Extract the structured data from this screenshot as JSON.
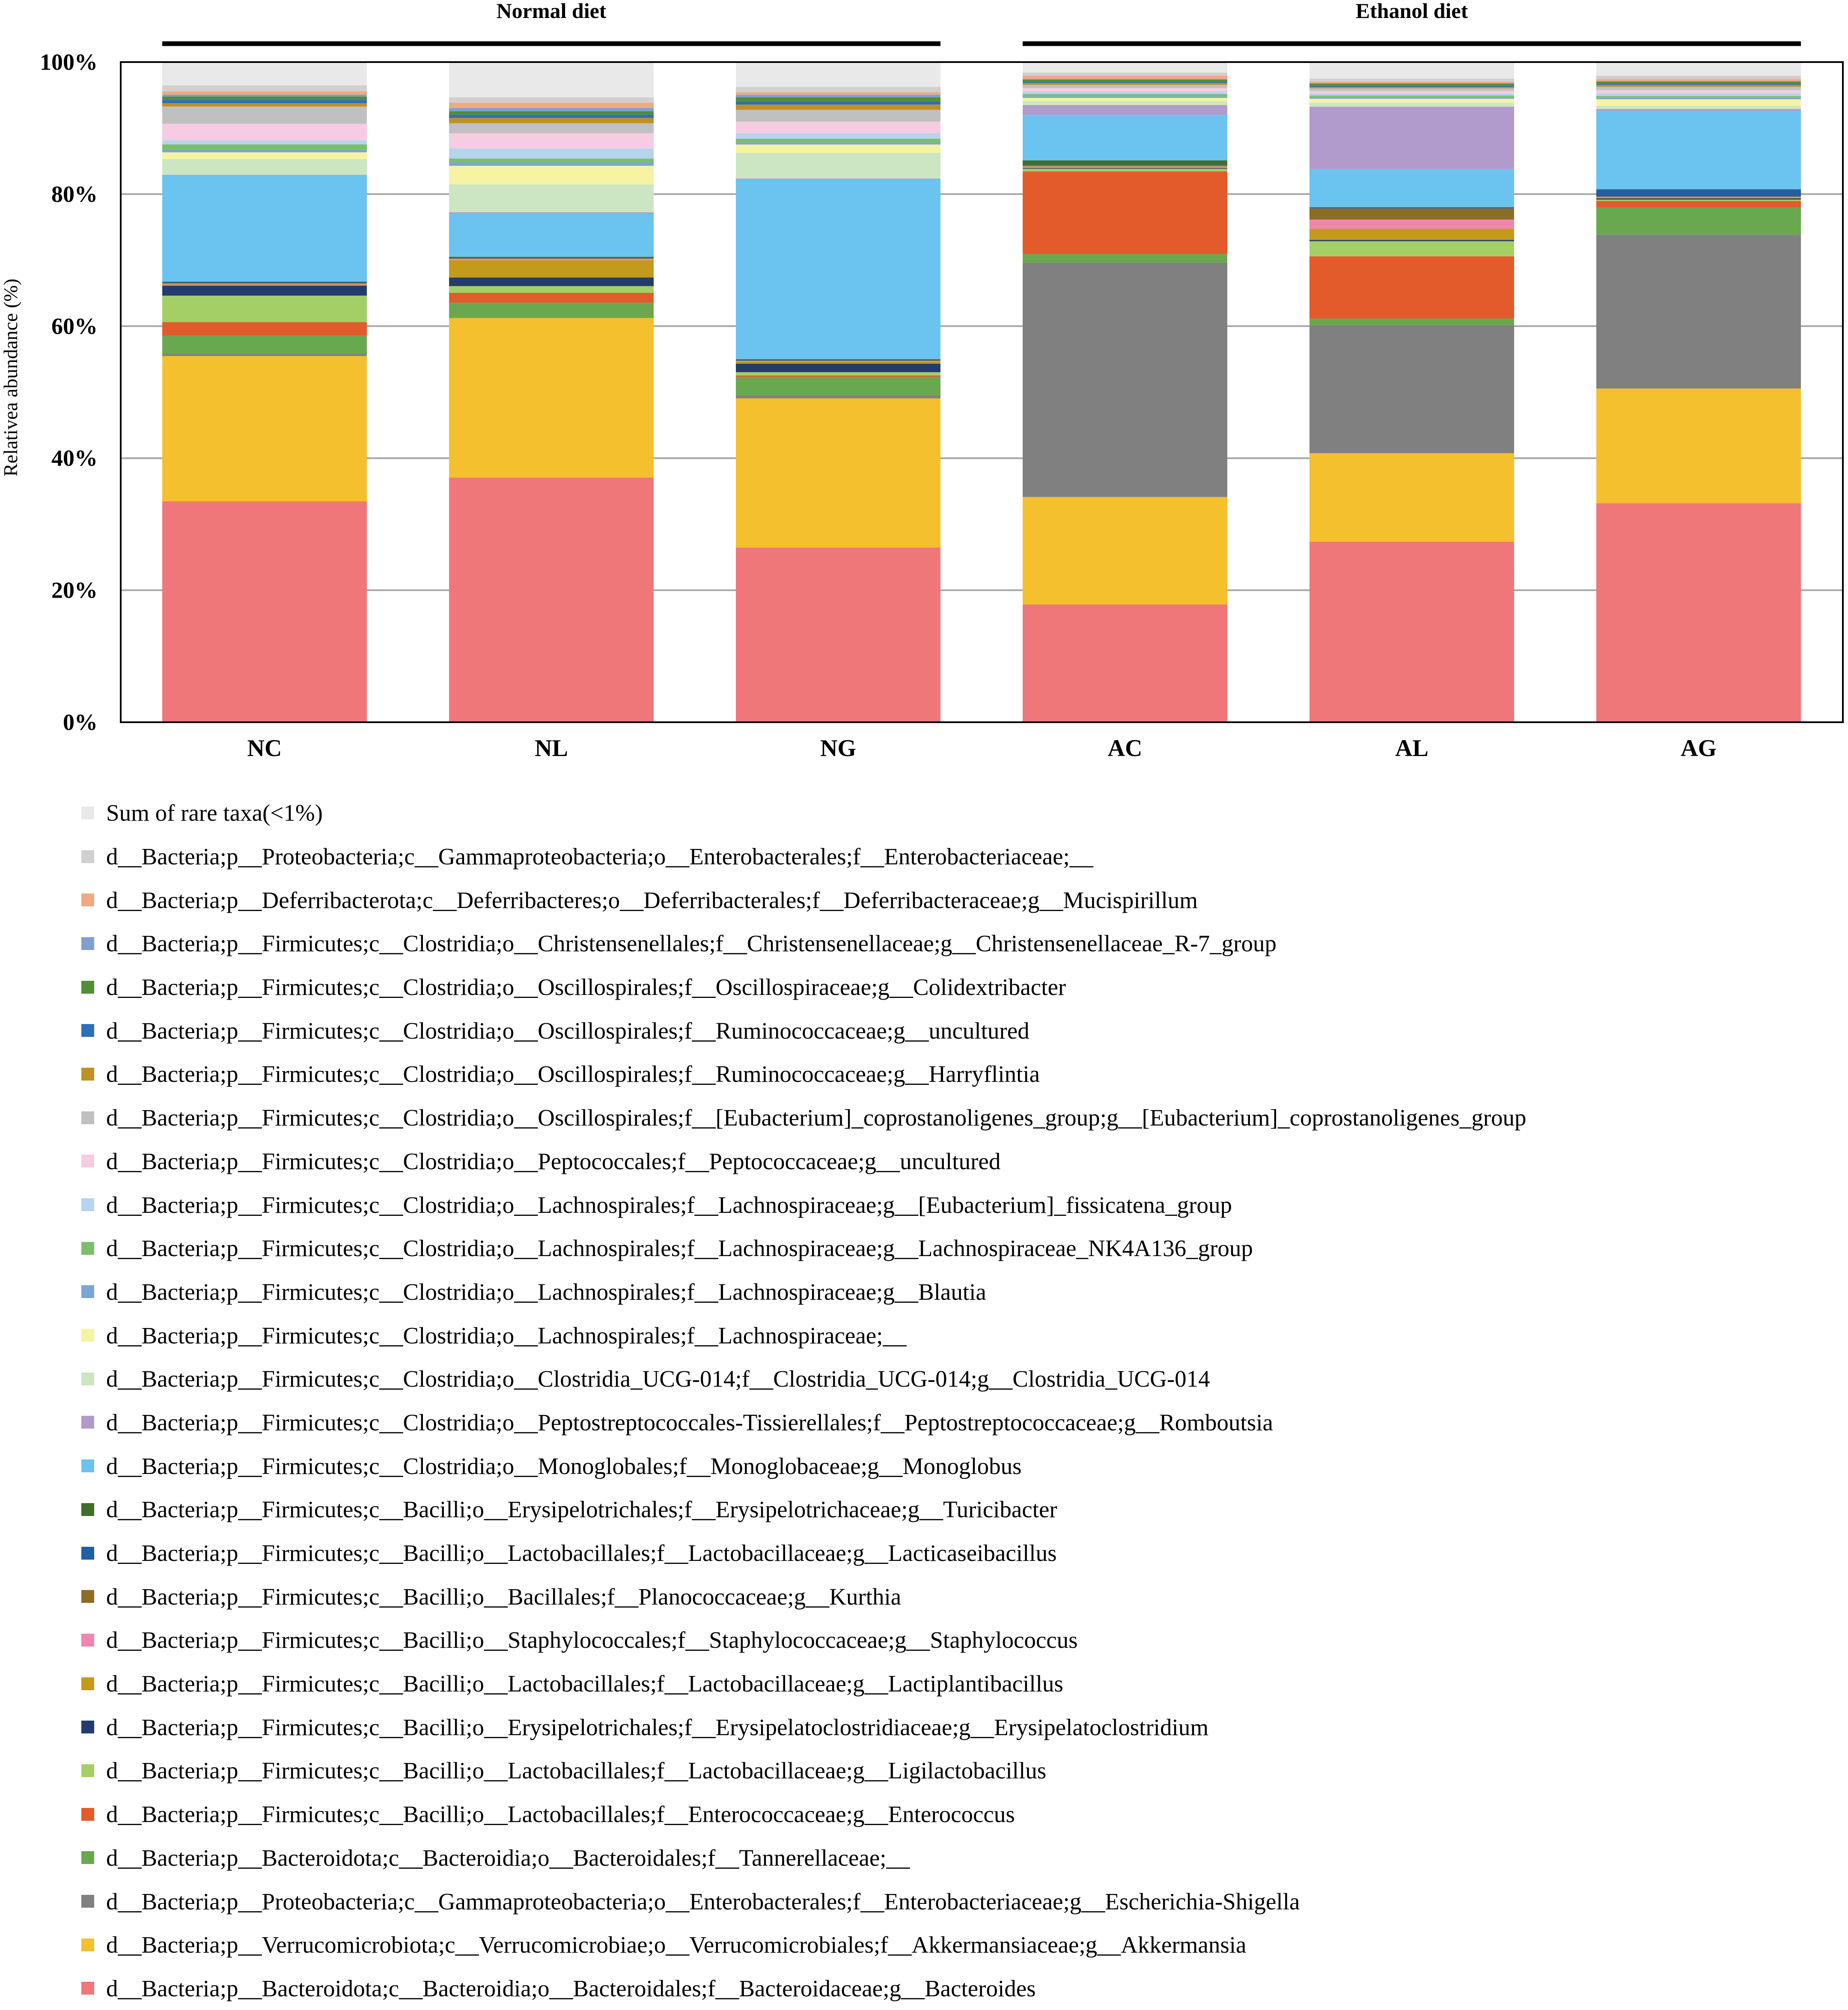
{
  "chart_data": {
    "type": "bar",
    "stacked": true,
    "title": "",
    "xlabel": "",
    "ylabel": "Relativea abundance (%)",
    "ylim": [
      0,
      100
    ],
    "yticks": [
      "0%",
      "20%",
      "40%",
      "60%",
      "80%",
      "100%"
    ],
    "grid": true,
    "legend_position": "bottom",
    "categories": [
      "NC",
      "NL",
      "NG",
      "AC",
      "AL",
      "AG"
    ],
    "groups": [
      {
        "label": "Normal diet",
        "categories": [
          "NC",
          "NL",
          "NG"
        ]
      },
      {
        "label": "Ethanol diet",
        "categories": [
          "AC",
          "AL",
          "AG"
        ]
      }
    ],
    "series": [
      {
        "name": "d__Bacteria;p__Bacteroidota;c__Bacteroidia;o__Bacteroidales;f__Bacteroidaceae;g__Bacteroides",
        "color": "#ef777a",
        "values": [
          33.3,
          36.8,
          26.7,
          18.1,
          27.5,
          33.6
        ]
      },
      {
        "name": "d__Bacteria;p__Verrucomicrobiota;c__Verrucomicrobiae;o__Verrucomicrobiales;f__Akkermansiaceae;g__Akkermansia",
        "color": "#f4c02e",
        "values": [
          21.9,
          24.0,
          22.8,
          16.5,
          13.5,
          17.6
        ]
      },
      {
        "name": "d__Bacteria;p__Proteobacteria;c__Gammaproteobacteria;o__Enterobacterales;f__Enterobacteriaceae;g__Escherichia-Shigella",
        "color": "#808080",
        "values": [
          0.4,
          0.1,
          0.5,
          36.0,
          19.5,
          23.6
        ]
      },
      {
        "name": "d__Bacteria;p__Bacteroidota;c__Bacteroidia;o__Bacteroidales;f__Tannerellaceae;__",
        "color": "#6aa84f",
        "values": [
          2.7,
          2.2,
          2.8,
          1.3,
          1.0,
          4.2
        ]
      },
      {
        "name": "d__Bacteria;p__Firmicutes;c__Bacilli;o__Lactobacillales;f__Enterococcaceae;g__Enterococcus",
        "color": "#e35a2b",
        "values": [
          2.0,
          1.5,
          0.2,
          12.7,
          9.5,
          1.0
        ]
      },
      {
        "name": "d__Bacteria;p__Firmicutes;c__Bacilli;o__Lactobacillales;f__Lactobacillaceae;g__Ligilactobacillus",
        "color": "#a4cf66",
        "values": [
          4.0,
          1.0,
          0.5,
          0.4,
          2.3,
          0.2
        ]
      },
      {
        "name": "d__Bacteria;p__Firmicutes;c__Bacilli;o__Erysipelotrichales;f__Erysipelatoclostridiaceae;g__Erysipelatoclostridium",
        "color": "#223c72",
        "values": [
          1.5,
          1.3,
          1.3,
          0.1,
          0.2,
          0.2
        ]
      },
      {
        "name": "d__Bacteria;p__Firmicutes;c__Bacilli;o__Lactobacillales;f__Lactobacillaceae;g__Lactiplantibacillus",
        "color": "#c49a1b",
        "values": [
          0.2,
          2.6,
          0.3,
          0.2,
          1.7,
          0.1
        ]
      },
      {
        "name": "d__Bacteria;p__Firmicutes;c__Bacilli;o__Staphylococcales;f__Staphylococcaceae;g__Staphylococcus",
        "color": "#ee86ae",
        "values": [
          0.1,
          0.2,
          0.1,
          0.1,
          1.4,
          0.1
        ]
      },
      {
        "name": "d__Bacteria;p__Firmicutes;c__Bacilli;o__Bacillales;f__Planococcaceae;g__Kurthia",
        "color": "#8c6d26",
        "values": [
          0.1,
          0.1,
          0.1,
          0.1,
          1.7,
          0.1
        ]
      },
      {
        "name": "d__Bacteria;p__Firmicutes;c__Bacilli;o__Lactobacillales;f__Lactobacillaceae;g__Lacticaseibacillus",
        "color": "#1f5fa3",
        "values": [
          0.1,
          0.1,
          0.1,
          0.1,
          0.1,
          1.0
        ]
      },
      {
        "name": "d__Bacteria;p__Firmicutes;c__Bacilli;o__Erysipelotrichales;f__Erysipelotrichaceae;g__Turicibacter",
        "color": "#3e6e2a",
        "values": [
          0.1,
          0.1,
          0.1,
          0.7,
          0.1,
          0.1
        ]
      },
      {
        "name": "d__Bacteria;p__Firmicutes;c__Clostridia;o__Monoglobales;f__Monoglobaceae;g__Monoglobus",
        "color": "#6ac4ef",
        "values": [
          16.0,
          6.5,
          27.5,
          7.0,
          5.8,
          12.0
        ]
      },
      {
        "name": "d__Bacteria;p__Firmicutes;c__Clostridia;o__Peptostreptococcales-Tissierellales;f__Peptostreptococcaceae;g__Romboutsia",
        "color": "#b19acc",
        "values": [
          0.1,
          0.2,
          0.1,
          1.5,
          9.5,
          0.3
        ]
      },
      {
        "name": "d__Bacteria;p__Firmicutes;c__Clostridia;o__Clostridia_UCG-014;f__Clostridia_UCG-014;g__Clostridia_UCG-014",
        "color": "#cce6c1",
        "values": [
          2.4,
          4.2,
          3.9,
          0.6,
          0.6,
          0.5
        ]
      },
      {
        "name": "d__Bacteria;p__Firmicutes;c__Clostridia;o__Lachnospirales;f__Lachnospiraceae;__",
        "color": "#f6f3a2",
        "values": [
          1.0,
          2.8,
          1.3,
          0.5,
          0.6,
          1.0
        ]
      },
      {
        "name": "d__Bacteria;p__Firmicutes;c__Clostridia;o__Lachnospirales;f__Lachnospiraceae;g__Blautia",
        "color": "#7aa6d6",
        "values": [
          0.4,
          0.5,
          0.3,
          0.2,
          0.2,
          0.2
        ]
      },
      {
        "name": "d__Bacteria;p__Firmicutes;c__Clostridia;o__Lachnospirales;f__Lachnospiraceae;g__Lachnospiraceae_NK4A136_group",
        "color": "#7cbf6a",
        "values": [
          0.8,
          0.6,
          0.6,
          0.4,
          0.3,
          0.3
        ]
      },
      {
        "name": "d__Bacteria;p__Firmicutes;c__Clostridia;o__Lachnospirales;f__Lachnospiraceae;g__[Eubacterium]_fissicatena_group",
        "color": "#b6d4ee",
        "values": [
          0.6,
          1.5,
          0.8,
          0.4,
          0.3,
          0.4
        ]
      },
      {
        "name": "d__Bacteria;p__Firmicutes;c__Clostridia;o__Peptococcales;f__Peptococcaceae;g__uncultured",
        "color": "#f5cce2",
        "values": [
          2.5,
          2.3,
          1.8,
          0.5,
          0.4,
          0.5
        ]
      },
      {
        "name": "d__Bacteria;p__Firmicutes;c__Clostridia;o__Oscillospirales;f__[Eubacterium]_coprostanoligenes_group;g__[Eubacterium]_coprostanoligenes_group",
        "color": "#c0c0c0",
        "values": [
          2.6,
          1.5,
          1.8,
          0.5,
          0.4,
          0.5
        ]
      },
      {
        "name": "d__Bacteria;p__Firmicutes;c__Clostridia;o__Oscillospirales;f__Ruminococcaceae;g__Harryflintia",
        "color": "#bf9122",
        "values": [
          0.5,
          0.8,
          0.8,
          0.3,
          0.2,
          0.3
        ]
      },
      {
        "name": "d__Bacteria;p__Firmicutes;c__Clostridia;o__Oscillospirales;f__Ruminococcaceae;g__uncultured",
        "color": "#2e6fb8",
        "values": [
          0.5,
          0.5,
          0.5,
          0.2,
          0.2,
          0.2
        ]
      },
      {
        "name": "d__Bacteria;p__Firmicutes;c__Clostridia;o__Oscillospirales;f__Oscillospiraceae;g__Colidextribacter",
        "color": "#4f8f35",
        "values": [
          0.5,
          0.5,
          0.6,
          0.3,
          0.3,
          0.3
        ]
      },
      {
        "name": "d__Bacteria;p__Firmicutes;c__Clostridia;o__Christensenellales;f__Christensenellaceae;g__Christensenellaceae_R-7_group",
        "color": "#7f9fd1",
        "values": [
          0.3,
          0.5,
          0.4,
          0.1,
          0.1,
          0.1
        ]
      },
      {
        "name": "d__Bacteria;p__Deferribacterota;c__Deferribacteres;o__Deferribacterales;f__Deferribacteraceae;g__Mucispirillum",
        "color": "#f1a982",
        "values": [
          0.5,
          0.8,
          0.4,
          0.5,
          0.2,
          0.3
        ]
      },
      {
        "name": "d__Bacteria;p__Proteobacteria;c__Gammaproteobacteria;o__Enterobacterales;f__Enterobacteriaceae;__",
        "color": "#d0d0d0",
        "values": [
          0.9,
          0.8,
          0.8,
          0.5,
          0.5,
          0.5
        ]
      },
      {
        "name": "Sum of rare taxa(<1%)",
        "color": "#e9e9e9",
        "values": [
          3.5,
          5.3,
          3.8,
          1.6,
          2.5,
          2.1
        ]
      }
    ]
  }
}
